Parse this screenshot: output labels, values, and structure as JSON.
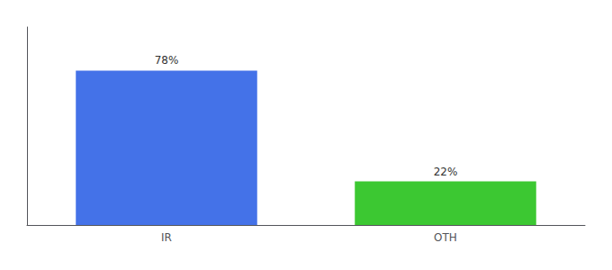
{
  "chart_data": {
    "type": "bar",
    "categories": [
      "IR",
      "OTH"
    ],
    "values": [
      78,
      22
    ],
    "value_labels": [
      "78%",
      "22%"
    ],
    "colors": [
      "#4472e8",
      "#3cc832"
    ],
    "ylim": [
      0,
      100
    ],
    "data_labels": true,
    "tick_labels": "x",
    "grid": false
  }
}
